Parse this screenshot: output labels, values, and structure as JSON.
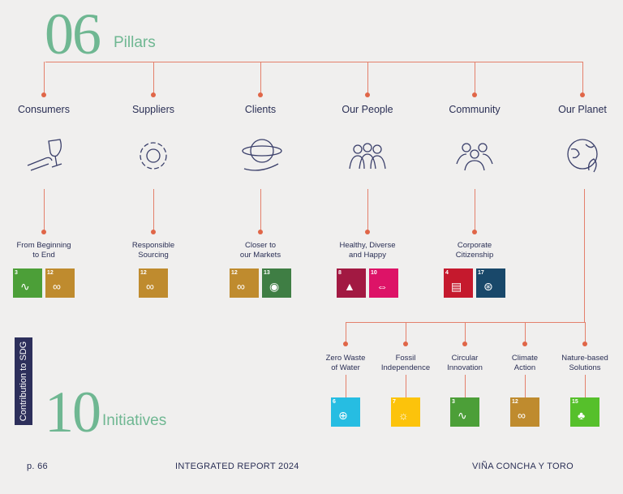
{
  "pillars_heading": {
    "number": "06",
    "word": "Pillars"
  },
  "initiatives_heading": {
    "number": "10",
    "word": "Initiatives"
  },
  "side_tab": "Contribution to SDG",
  "pillars": [
    {
      "name": "Consumers",
      "icon": "wine-glass-hand-icon",
      "initiative": [
        "From Beginning",
        "to End"
      ]
    },
    {
      "name": "Suppliers",
      "icon": "gear-icon",
      "initiative": [
        "Responsible",
        "Sourcing"
      ]
    },
    {
      "name": "Clients",
      "icon": "globe-hand-icon",
      "initiative": [
        "Closer to",
        "our Markets"
      ]
    },
    {
      "name": "Our People",
      "icon": "people-group-icon",
      "initiative": [
        "Healthy, Diverse",
        "and Happy"
      ]
    },
    {
      "name": "Community",
      "icon": "community-icon",
      "initiative": [
        "Corporate",
        "Citizenship"
      ]
    },
    {
      "name": "Our Planet",
      "icon": "planet-leaf-icon",
      "initiative": []
    }
  ],
  "planet_initiatives": [
    [
      "Zero Waste",
      "of Water"
    ],
    [
      "Fossil",
      "Independence"
    ],
    [
      "Circular",
      "Innovation"
    ],
    [
      "Climate",
      "Action"
    ],
    [
      "Nature-based",
      "Solutions"
    ]
  ],
  "sdg_colors": {
    "3": "#4c9f38",
    "6": "#26bde2",
    "7": "#fcc30b",
    "8": "#a21942",
    "10": "#dd1367",
    "12": "#bf8b2e",
    "13": "#3f7e44",
    "15": "#56c02b",
    "16": "#00689d",
    "17": "#19486a",
    "4": "#c5192d"
  },
  "footer": {
    "page": "p. 66",
    "report": "INTEGRATED REPORT 2024",
    "company": "VIÑA CONCHA Y TORO"
  }
}
